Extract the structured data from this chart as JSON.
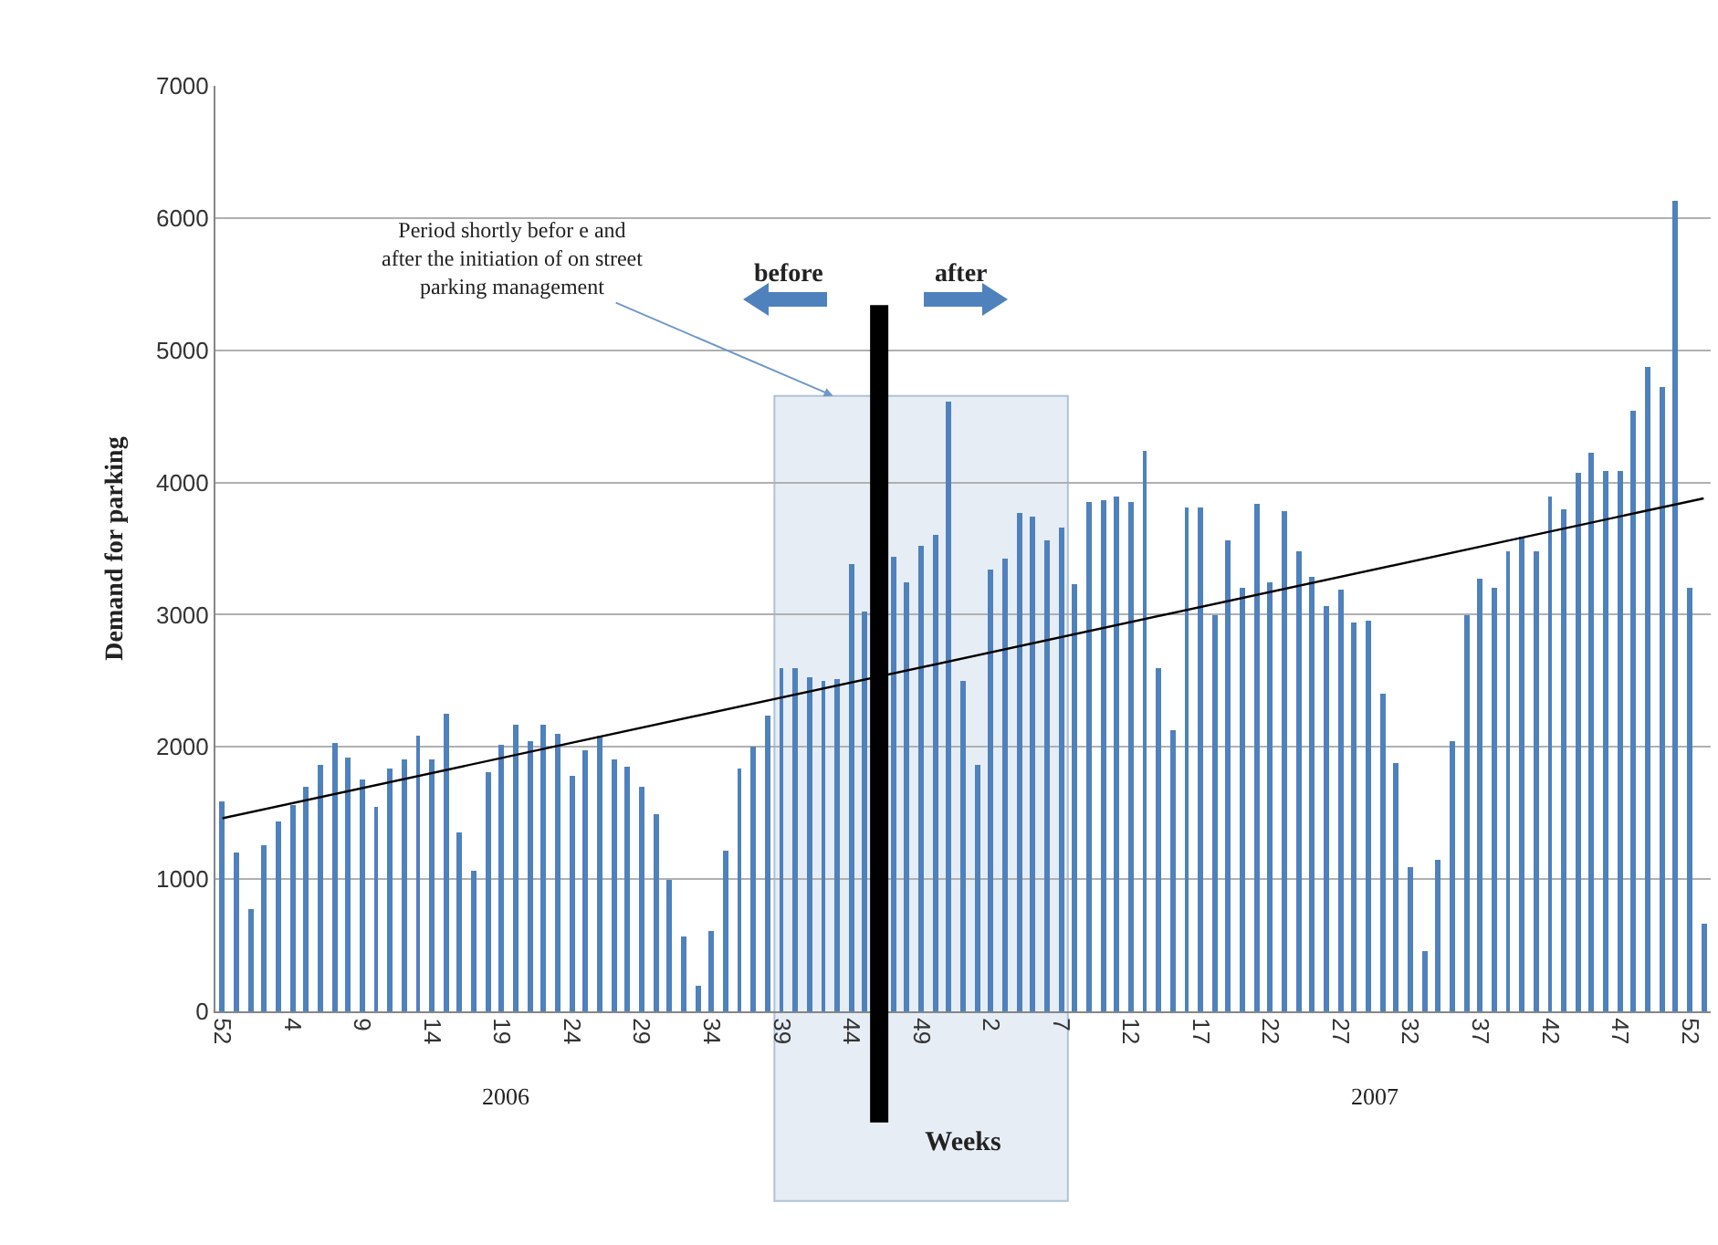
{
  "chart_data": {
    "type": "bar",
    "xlabel": "Weeks",
    "ylabel": "Demand for parking",
    "categories": [
      "52",
      null,
      null,
      null,
      null,
      "4",
      null,
      null,
      null,
      null,
      "9",
      null,
      null,
      null,
      null,
      "14",
      null,
      null,
      null,
      null,
      "19",
      null,
      null,
      null,
      null,
      "24",
      null,
      null,
      null,
      null,
      "29",
      null,
      null,
      null,
      null,
      "34",
      null,
      null,
      null,
      null,
      "39",
      null,
      null,
      null,
      null,
      "44",
      null,
      null,
      null,
      null,
      "49",
      null,
      null,
      null,
      null,
      "2",
      null,
      null,
      null,
      null,
      "7",
      null,
      null,
      null,
      null,
      "12",
      null,
      null,
      null,
      null,
      "17",
      null,
      null,
      null,
      null,
      "22",
      null,
      null,
      null,
      null,
      "27",
      null,
      null,
      null,
      null,
      "32",
      null,
      null,
      null,
      null,
      "37",
      null,
      null,
      null,
      null,
      "42",
      null,
      null,
      null,
      null,
      "47",
      null,
      null,
      null,
      null,
      "52",
      null
    ],
    "series": [
      {
        "color": "#4f81bd",
        "values": [
          1590,
          1200,
          780,
          1260,
          1440,
          1560,
          1700,
          1870,
          2030,
          1920,
          1750,
          1540,
          1830,
          1900,
          2080,
          1900,
          2250,
          1350,
          1070,
          1810,
          2020,
          2170,
          2050,
          2170,
          2100,
          1780,
          1970,
          2080,
          1900,
          1850,
          1700,
          1490,
          990,
          560,
          200,
          610,
          1220,
          1840,
          2000,
          2230,
          2600,
          2600,
          2520,
          2500,
          2510,
          3380,
          3020,
          null,
          3440,
          3250,
          3520,
          3600,
          4610,
          2500,
          1870,
          3340,
          3430,
          3770,
          3740,
          3560,
          3660,
          3230,
          3850,
          3870,
          3900,
          3850,
          4240,
          2600,
          2130,
          3810,
          3810,
          3000,
          3560,
          3200,
          3840,
          3250,
          3780,
          3480,
          3290,
          3070,
          3190,
          2940,
          2950,
          2400,
          1880,
          1090,
          460,
          1140,
          2050,
          3000,
          3270,
          3200,
          3480,
          3590,
          3480,
          3890,
          3800,
          4070,
          4230,
          4090,
          4080,
          4540,
          4880,
          4720,
          6130,
          3200,
          660
        ]
      },
      {
        "type": "line",
        "color": "#000000",
        "values": [
          1460,
          null,
          null,
          null,
          null,
          null,
          null,
          null,
          null,
          null,
          null,
          null,
          null,
          null,
          null,
          null,
          null,
          null,
          null,
          null,
          null,
          null,
          null,
          null,
          null,
          null,
          null,
          null,
          null,
          null,
          null,
          null,
          null,
          null,
          null,
          null,
          null,
          null,
          null,
          null,
          null,
          null,
          null,
          null,
          null,
          null,
          null,
          null,
          null,
          null,
          null,
          null,
          null,
          null,
          null,
          null,
          null,
          null,
          null,
          null,
          null,
          null,
          null,
          null,
          null,
          null,
          null,
          null,
          null,
          null,
          null,
          null,
          null,
          null,
          null,
          null,
          null,
          null,
          null,
          null,
          null,
          null,
          null,
          null,
          null,
          null,
          null,
          null,
          null,
          null,
          null,
          null,
          null,
          null,
          null,
          null,
          null,
          null,
          null,
          null,
          null,
          null,
          null,
          null,
          null,
          null,
          3880
        ]
      }
    ],
    "ylim": [
      0,
      7000
    ],
    "yticks": [
      0,
      1000,
      2000,
      3000,
      4000,
      5000,
      6000,
      7000
    ],
    "grid": "y",
    "bands": [
      {
        "axis": "x",
        "from": "39",
        "to": "7",
        "label": "Period shortly befor e and after the initiation of on street parking management",
        "color": "#dce6f2"
      }
    ],
    "ref_lines": [
      {
        "axis": "x",
        "color": "#000000"
      }
    ],
    "annotations": [
      "before",
      "after",
      "2006",
      "2007"
    ]
  }
}
